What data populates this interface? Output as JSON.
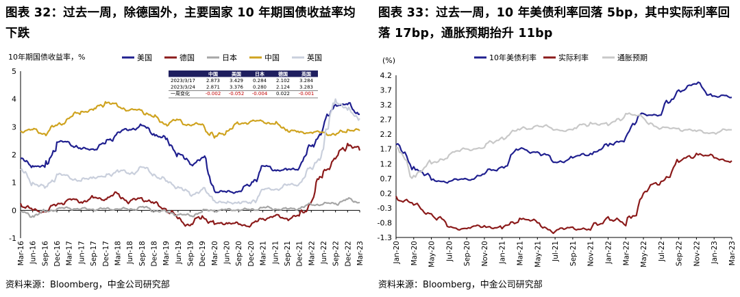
{
  "left": {
    "title": "图表 32：过去一周，除德国外，主要国家 10 年期国债收益率均下跌",
    "source": "资料来源：Bloomberg，中金公司研究部"
  },
  "right": {
    "title": "图表 33：过去一周，10 年美债利率回落 5bp，其中实际利率回落 17bp，通胀预期抬升 11bp",
    "source": "资料来源：Bloomberg，中金公司研究部"
  },
  "chart_data": [
    {
      "type": "line",
      "ylabel": "10年期国债收益率，%",
      "ylim": [
        -1,
        5
      ],
      "yticks": [
        -1,
        0,
        1,
        2,
        3,
        4,
        5
      ],
      "xlabel": "",
      "categories": [
        "Mar-16",
        "Jun-16",
        "Sep-16",
        "Dec-16",
        "Mar-17",
        "Jun-17",
        "Sep-17",
        "Dec-17",
        "Mar-18",
        "Jun-18",
        "Sep-18",
        "Dec-18",
        "Mar-19",
        "Jun-19",
        "Sep-19",
        "Dec-19",
        "Mar-20",
        "Jun-20",
        "Sep-20",
        "Dec-20",
        "Mar-21",
        "Jun-21",
        "Sep-21",
        "Dec-21",
        "Mar-22",
        "Jun-22",
        "Sep-22",
        "Dec-22",
        "Mar-23"
      ],
      "legend": [
        "美国",
        "德国",
        "日本",
        "中国",
        "英国"
      ],
      "colors": {
        "美国": "#1f1f8f",
        "德国": "#8b1a1a",
        "日本": "#a6a6a6",
        "中国": "#cfa31f",
        "英国": "#c9cfdc"
      },
      "series": [
        {
          "name": "美国",
          "values": [
            1.85,
            1.6,
            1.55,
            2.45,
            2.45,
            2.2,
            2.2,
            2.4,
            2.8,
            2.9,
            3.05,
            2.75,
            2.55,
            2.05,
            1.65,
            1.9,
            0.7,
            0.65,
            0.68,
            0.92,
            1.6,
            1.45,
            1.45,
            1.52,
            2.3,
            3.0,
            3.8,
            3.8,
            3.45
          ]
        },
        {
          "name": "德国",
          "values": [
            0.25,
            0.0,
            -0.05,
            0.2,
            0.4,
            0.3,
            0.45,
            0.4,
            0.6,
            0.3,
            0.45,
            0.25,
            0.05,
            -0.3,
            -0.55,
            -0.2,
            -0.5,
            -0.45,
            -0.5,
            -0.55,
            -0.3,
            -0.2,
            -0.3,
            -0.2,
            0.3,
            1.4,
            1.85,
            2.4,
            2.15
          ]
        },
        {
          "name": "日本",
          "values": [
            -0.05,
            -0.2,
            -0.05,
            0.05,
            0.08,
            0.05,
            0.04,
            0.05,
            0.05,
            0.03,
            0.12,
            0.0,
            -0.05,
            -0.15,
            -0.2,
            -0.02,
            0.0,
            0.02,
            0.02,
            0.02,
            0.1,
            0.05,
            0.05,
            0.07,
            0.2,
            0.23,
            0.25,
            0.4,
            0.28
          ]
        },
        {
          "name": "中国",
          "values": [
            2.85,
            2.9,
            2.75,
            3.05,
            3.3,
            3.55,
            3.6,
            3.9,
            3.75,
            3.6,
            3.6,
            3.35,
            3.1,
            3.25,
            3.05,
            3.1,
            2.6,
            2.85,
            3.1,
            3.2,
            3.2,
            3.1,
            2.9,
            2.8,
            2.8,
            2.8,
            2.7,
            2.9,
            2.86
          ]
        },
        {
          "name": "英国",
          "values": [
            1.45,
            1.0,
            0.8,
            1.3,
            1.2,
            1.05,
            1.2,
            1.2,
            1.45,
            1.3,
            1.55,
            1.3,
            1.05,
            0.85,
            0.55,
            0.75,
            0.35,
            0.25,
            0.3,
            0.25,
            0.75,
            0.75,
            0.9,
            0.95,
            1.5,
            2.2,
            4.0,
            3.6,
            3.3
          ]
        }
      ],
      "table": {
        "headers": [
          "",
          "中国",
          "美国",
          "日本",
          "德国",
          "英国"
        ],
        "rows": [
          [
            "2023/3/17",
            "2.873",
            "3.429",
            "0.284",
            "2.102",
            "3.284"
          ],
          [
            "2023/3/24",
            "2.871",
            "3.376",
            "0.280",
            "2.124",
            "3.283"
          ],
          [
            "一周变化",
            "-0.002",
            "-0.052",
            "-0.004",
            "0.022",
            "-0.001"
          ]
        ]
      }
    },
    {
      "type": "line",
      "ylabel": "(%)",
      "ylim": [
        -1.3,
        4.2
      ],
      "yticks": [
        -1.3,
        -0.8,
        -0.3,
        0.2,
        0.7,
        1.2,
        1.7,
        2.2,
        2.7,
        3.2,
        3.7,
        4.2
      ],
      "xlabel": "",
      "categories": [
        "Jan-20",
        "Mar-20",
        "May-20",
        "Jul-20",
        "Sep-20",
        "Nov-20",
        "Jan-21",
        "Mar-21",
        "May-21",
        "Jul-21",
        "Sep-21",
        "Nov-21",
        "Jan-22",
        "Mar-22",
        "May-22",
        "Jul-22",
        "Sep-22",
        "Nov-22",
        "Jan-23",
        "Mar-23"
      ],
      "legend": [
        "10年美债利率",
        "实际利率",
        "通胀预期"
      ],
      "colors": {
        "10年美债利率": "#1f1f8f",
        "实际利率": "#8b1a1a",
        "通胀预期": "#c8c8c8"
      },
      "series": [
        {
          "name": "10年美债利率",
          "values": [
            1.85,
            1.1,
            0.65,
            0.6,
            0.68,
            0.85,
            1.1,
            1.7,
            1.6,
            1.25,
            1.4,
            1.55,
            1.8,
            2.1,
            2.9,
            2.85,
            3.7,
            3.9,
            3.5,
            3.45
          ]
        },
        {
          "name": "实际利率",
          "values": [
            0.1,
            -0.2,
            -0.5,
            -0.95,
            -1.0,
            -0.9,
            -1.0,
            -0.65,
            -0.8,
            -1.1,
            -0.95,
            -1.05,
            -0.6,
            -0.9,
            0.2,
            0.6,
            1.25,
            1.55,
            1.4,
            1.3
          ]
        },
        {
          "name": "通胀预期",
          "values": [
            1.75,
            0.8,
            1.2,
            1.5,
            1.7,
            1.75,
            2.1,
            2.35,
            2.5,
            2.35,
            2.35,
            2.6,
            2.5,
            2.9,
            2.75,
            2.4,
            2.4,
            2.3,
            2.25,
            2.35
          ]
        }
      ]
    }
  ]
}
